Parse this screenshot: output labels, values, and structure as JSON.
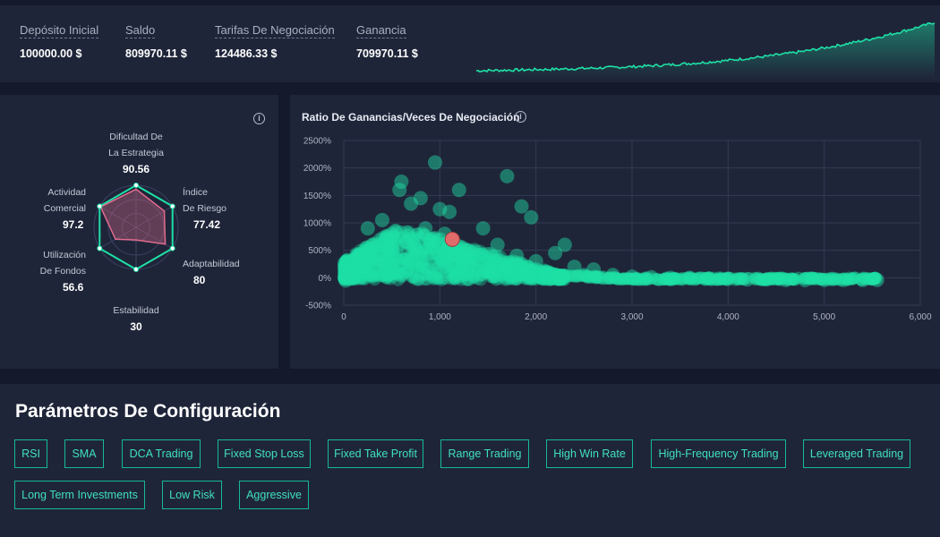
{
  "stats": [
    {
      "label": "Depósito Inicial",
      "value": "100000.00 $"
    },
    {
      "label": "Saldo",
      "value": "809970.11 $"
    },
    {
      "label": "Tarifas De Negociación",
      "value": "124486.33 $"
    },
    {
      "label": "Ganancia",
      "value": "709970.11 $"
    }
  ],
  "colors": {
    "accent": "#1ee0a6",
    "highlight": "#e06b6b",
    "panel": "#1f2539",
    "background": "#141a2c",
    "tag_border": "#16b89a",
    "tag_text": "#3fe0bf"
  },
  "radar": {
    "axes": [
      {
        "label_lines": [
          "Dificultad De",
          "La Estrategia"
        ],
        "value": "90.56"
      },
      {
        "label_lines": [
          "Índice",
          "De Riesgo"
        ],
        "value": "77.42"
      },
      {
        "label_lines": [
          "Adaptabilidad"
        ],
        "value": "80"
      },
      {
        "label_lines": [
          "Estabilidad"
        ],
        "value": "30"
      },
      {
        "label_lines": [
          "Utilización",
          "De Fondos"
        ],
        "value": "56.6"
      },
      {
        "label_lines": [
          "Actividad",
          "Comercial"
        ],
        "value": "97.2"
      }
    ],
    "info_icon": "info-icon"
  },
  "scatter": {
    "title": "Ratio De Ganancias/Veces De Negociación",
    "info_icon": "info-icon",
    "chart_data": {
      "type": "scatter",
      "title": "Ratio De Ganancias/Veces De Negociación",
      "xlabel": "",
      "ylabel": "",
      "xlim": [
        0,
        6000
      ],
      "ylim": [
        -500,
        2500
      ],
      "x_ticks": [
        "0",
        "1,000",
        "2,000",
        "3,000",
        "4,000",
        "5,000",
        "6,000"
      ],
      "y_ticks": [
        "2500%",
        "2000%",
        "1500%",
        "1000%",
        "500%",
        "0%",
        "-500%"
      ],
      "grid": true,
      "highlight_point": {
        "x": 1130,
        "y": 700
      },
      "series": [
        {
          "values": [
            [
              950,
              2100
            ],
            [
              1700,
              1850
            ],
            [
              1200,
              1600
            ],
            [
              600,
              1750
            ],
            [
              580,
              1600
            ],
            [
              800,
              1450
            ],
            [
              1000,
              1250
            ],
            [
              1850,
              1300
            ],
            [
              1950,
              1100
            ],
            [
              1100,
              1200
            ],
            [
              2300,
              600
            ],
            [
              2200,
              450
            ],
            [
              400,
              1050
            ],
            [
              250,
              900
            ],
            [
              700,
              1350
            ],
            [
              1450,
              900
            ],
            [
              300,
              600
            ],
            [
              150,
              400
            ],
            [
              50,
              100
            ],
            [
              500,
              800
            ],
            [
              900,
              700
            ],
            [
              1300,
              500
            ],
            [
              1600,
              600
            ],
            [
              1800,
              400
            ],
            [
              2000,
              300
            ],
            [
              2400,
              200
            ],
            [
              2600,
              150
            ],
            [
              2800,
              50
            ],
            [
              3000,
              20
            ],
            [
              3200,
              10
            ],
            [
              3400,
              0
            ],
            [
              3600,
              0
            ],
            [
              3800,
              -10
            ],
            [
              4000,
              -20
            ],
            [
              4200,
              -30
            ],
            [
              4400,
              -30
            ],
            [
              4600,
              -40
            ],
            [
              4800,
              -40
            ],
            [
              5000,
              -40
            ],
            [
              5200,
              -40
            ],
            [
              5400,
              -40
            ],
            [
              5550,
              -40
            ],
            [
              200,
              200
            ],
            [
              350,
              300
            ],
            [
              450,
              500
            ],
            [
              650,
              650
            ],
            [
              750,
              500
            ],
            [
              850,
              900
            ],
            [
              1050,
              800
            ],
            [
              1150,
              400
            ],
            [
              1250,
              300
            ],
            [
              1350,
              200
            ],
            [
              1500,
              100
            ],
            [
              1700,
              200
            ],
            [
              1900,
              100
            ],
            [
              2100,
              100
            ],
            [
              2500,
              50
            ],
            [
              2700,
              0
            ],
            [
              100,
              0
            ],
            [
              20,
              -50
            ]
          ]
        }
      ]
    }
  },
  "params": {
    "title": "Parámetros De Configuración",
    "tags": [
      "RSI",
      "SMA",
      "DCA Trading",
      "Fixed Stop Loss",
      "Fixed Take Profit",
      "Range Trading",
      "High Win Rate",
      "High-Frequency Trading",
      "Leveraged Trading",
      "Long Term Investments",
      "Low Risk",
      "Aggressive"
    ]
  }
}
